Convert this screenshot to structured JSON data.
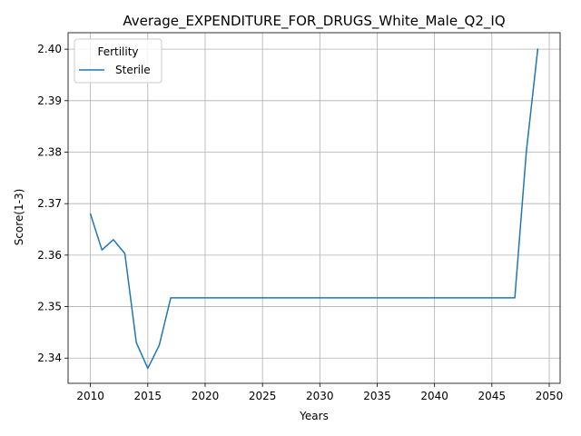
{
  "chart_data": {
    "type": "line",
    "title": "Average_EXPENDITURE_FOR_DRUGS_White_Male_Q2_IQ",
    "xlabel": "Years",
    "ylabel": "Score(1-3)",
    "xlim": [
      2008.05,
      2050.95
    ],
    "ylim": [
      2.3351,
      2.4032
    ],
    "xticks": [
      2010,
      2015,
      2020,
      2025,
      2030,
      2035,
      2040,
      2045,
      2050
    ],
    "yticks": [
      2.34,
      2.35,
      2.36,
      2.37,
      2.38,
      2.39,
      2.4
    ],
    "ytick_labels": [
      "2.34",
      "2.35",
      "2.36",
      "2.37",
      "2.38",
      "2.39",
      "2.40"
    ],
    "grid": true,
    "legend": {
      "title": "Fertility",
      "placement": "top-left"
    },
    "series": [
      {
        "name": "Sterile",
        "color": "#1f77b4",
        "x": [
          2010,
          2011,
          2012,
          2013,
          2014,
          2015,
          2016,
          2017,
          2018,
          2019,
          2020,
          2021,
          2022,
          2023,
          2024,
          2025,
          2026,
          2027,
          2028,
          2029,
          2030,
          2031,
          2032,
          2033,
          2034,
          2035,
          2036,
          2037,
          2038,
          2039,
          2040,
          2041,
          2042,
          2043,
          2044,
          2045,
          2046,
          2047,
          2048,
          2049
        ],
        "y": [
          2.368,
          2.361,
          2.363,
          2.3603,
          2.343,
          2.338,
          2.3425,
          2.3517,
          2.3517,
          2.3517,
          2.3517,
          2.3517,
          2.3517,
          2.3517,
          2.3517,
          2.3517,
          2.3517,
          2.3517,
          2.3517,
          2.3517,
          2.3517,
          2.3517,
          2.3517,
          2.3517,
          2.3517,
          2.3517,
          2.3517,
          2.3517,
          2.3517,
          2.3517,
          2.3517,
          2.3517,
          2.3517,
          2.3517,
          2.3517,
          2.3517,
          2.3517,
          2.3517,
          2.38,
          2.4
        ]
      }
    ]
  }
}
